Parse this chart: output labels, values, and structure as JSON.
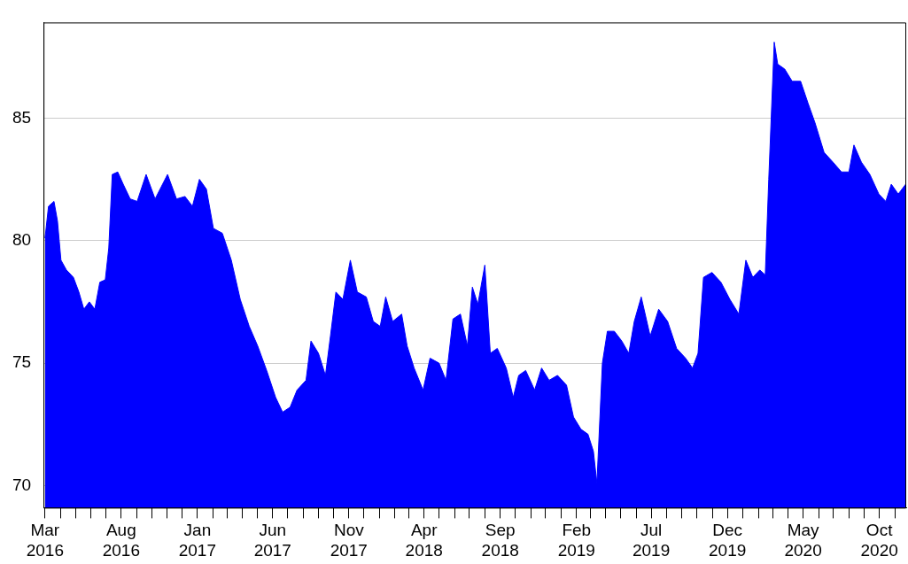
{
  "chart_data": {
    "type": "area",
    "x": [
      "2016-03-01",
      "2016-03-08",
      "2016-03-19",
      "2016-03-26",
      "2016-04-02",
      "2016-04-13",
      "2016-04-27",
      "2016-05-08",
      "2016-05-18",
      "2016-05-29",
      "2016-06-09",
      "2016-06-19",
      "2016-06-30",
      "2016-07-07",
      "2016-07-14",
      "2016-07-25",
      "2016-08-05",
      "2016-08-19",
      "2016-09-02",
      "2016-09-20",
      "2016-10-08",
      "2016-11-02",
      "2016-11-20",
      "2016-12-07",
      "2016-12-22",
      "2017-01-05",
      "2017-01-19",
      "2017-02-02",
      "2017-02-20",
      "2017-03-10",
      "2017-03-28",
      "2017-04-15",
      "2017-05-02",
      "2017-05-20",
      "2017-06-07",
      "2017-06-21",
      "2017-07-06",
      "2017-07-20",
      "2017-08-07",
      "2017-08-17",
      "2017-09-01",
      "2017-09-15",
      "2017-09-25",
      "2017-10-06",
      "2017-10-20",
      "2017-11-04",
      "2017-11-18",
      "2017-12-06",
      "2017-12-20",
      "2018-01-03",
      "2018-01-14",
      "2018-01-28",
      "2018-02-15",
      "2018-02-26",
      "2018-03-12",
      "2018-03-30",
      "2018-04-13",
      "2018-05-01",
      "2018-05-15",
      "2018-05-29",
      "2018-06-13",
      "2018-06-27",
      "2018-07-07",
      "2018-07-18",
      "2018-08-01",
      "2018-08-12",
      "2018-08-26",
      "2018-09-13",
      "2018-09-27",
      "2018-10-08",
      "2018-10-22",
      "2018-11-09",
      "2018-11-23",
      "2018-12-08",
      "2018-12-25",
      "2019-01-12",
      "2019-01-26",
      "2019-02-10",
      "2019-02-24",
      "2019-03-07",
      "2019-03-14",
      "2019-03-25",
      "2019-04-04",
      "2019-04-18",
      "2019-05-03",
      "2019-05-17",
      "2019-05-28",
      "2019-06-11",
      "2019-06-29",
      "2019-07-16",
      "2019-08-03",
      "2019-08-21",
      "2019-09-08",
      "2019-09-22",
      "2019-10-03",
      "2019-10-14",
      "2019-10-31",
      "2019-11-18",
      "2019-12-06",
      "2019-12-24",
      "2020-01-07",
      "2020-01-21",
      "2020-02-04",
      "2020-02-15",
      "2020-02-22",
      "2020-03-04",
      "2020-03-11",
      "2020-03-25",
      "2020-04-09",
      "2020-04-26",
      "2020-05-11",
      "2020-05-25",
      "2020-06-12",
      "2020-06-30",
      "2020-07-17",
      "2020-08-01",
      "2020-08-11",
      "2020-08-26",
      "2020-09-12",
      "2020-09-30",
      "2020-10-14",
      "2020-10-25",
      "2020-11-08",
      "2020-11-23"
    ],
    "series": [
      {
        "color": "#0000ff",
        "values": [
          80.1,
          81.4,
          81.6,
          80.8,
          79.2,
          78.8,
          78.5,
          77.9,
          77.2,
          77.5,
          77.2,
          78.3,
          78.4,
          79.7,
          82.7,
          82.8,
          82.3,
          81.7,
          81.6,
          82.7,
          81.7,
          82.7,
          81.7,
          81.8,
          81.4,
          82.5,
          82.1,
          80.5,
          80.3,
          79.2,
          77.6,
          76.5,
          75.7,
          74.7,
          73.6,
          73.0,
          73.2,
          73.9,
          74.3,
          75.9,
          75.4,
          74.5,
          76.1,
          77.9,
          77.6,
          79.2,
          77.9,
          77.7,
          76.7,
          76.5,
          77.7,
          76.7,
          77.0,
          75.7,
          74.8,
          73.9,
          75.2,
          75.0,
          74.3,
          76.8,
          77.0,
          75.7,
          78.1,
          77.4,
          79.0,
          75.4,
          75.6,
          74.8,
          73.6,
          74.5,
          74.7,
          73.9,
          74.8,
          74.3,
          74.5,
          74.1,
          72.8,
          72.3,
          72.1,
          71.4,
          70.1,
          75.0,
          76.3,
          76.3,
          75.9,
          75.4,
          76.7,
          77.7,
          76.1,
          77.2,
          76.7,
          75.6,
          75.2,
          74.8,
          75.4,
          78.5,
          78.7,
          78.3,
          77.6,
          77.0,
          79.2,
          78.5,
          78.8,
          78.6,
          82.5,
          88.1,
          87.2,
          87.0,
          86.5,
          86.5,
          85.6,
          84.8,
          83.6,
          83.2,
          82.8,
          82.8,
          83.9,
          83.2,
          82.7,
          81.9,
          81.6,
          82.3,
          81.9,
          82.3
        ]
      }
    ],
    "xlim": [
      "2016-02-27",
      "2020-11-24"
    ],
    "xticks": [
      {
        "value": "2016-03-01",
        "label": "Mar 2016"
      },
      {
        "value": "2016-04-01",
        "label": null
      },
      {
        "value": "2016-05-01",
        "label": null
      },
      {
        "value": "2016-06-01",
        "label": null
      },
      {
        "value": "2016-07-01",
        "label": null
      },
      {
        "value": "2016-08-01",
        "label": "Aug 2016"
      },
      {
        "value": "2016-09-01",
        "label": null
      },
      {
        "value": "2016-10-01",
        "label": null
      },
      {
        "value": "2016-11-01",
        "label": null
      },
      {
        "value": "2016-12-01",
        "label": null
      },
      {
        "value": "2017-01-01",
        "label": "Jan 2017"
      },
      {
        "value": "2017-02-01",
        "label": null
      },
      {
        "value": "2017-03-01",
        "label": null
      },
      {
        "value": "2017-04-01",
        "label": null
      },
      {
        "value": "2017-05-01",
        "label": null
      },
      {
        "value": "2017-06-01",
        "label": "Jun 2017"
      },
      {
        "value": "2017-07-01",
        "label": null
      },
      {
        "value": "2017-08-01",
        "label": null
      },
      {
        "value": "2017-09-01",
        "label": null
      },
      {
        "value": "2017-10-01",
        "label": null
      },
      {
        "value": "2017-11-01",
        "label": "Nov 2017"
      },
      {
        "value": "2017-12-01",
        "label": null
      },
      {
        "value": "2018-01-01",
        "label": null
      },
      {
        "value": "2018-02-01",
        "label": null
      },
      {
        "value": "2018-03-01",
        "label": null
      },
      {
        "value": "2018-04-01",
        "label": "Apr 2018"
      },
      {
        "value": "2018-05-01",
        "label": null
      },
      {
        "value": "2018-06-01",
        "label": null
      },
      {
        "value": "2018-07-01",
        "label": null
      },
      {
        "value": "2018-08-01",
        "label": null
      },
      {
        "value": "2018-09-01",
        "label": "Sep 2018"
      },
      {
        "value": "2018-10-01",
        "label": null
      },
      {
        "value": "2018-11-01",
        "label": null
      },
      {
        "value": "2018-12-01",
        "label": null
      },
      {
        "value": "2019-01-01",
        "label": null
      },
      {
        "value": "2019-02-01",
        "label": "Feb 2019"
      },
      {
        "value": "2019-03-01",
        "label": null
      },
      {
        "value": "2019-04-01",
        "label": null
      },
      {
        "value": "2019-05-01",
        "label": null
      },
      {
        "value": "2019-06-01",
        "label": null
      },
      {
        "value": "2019-07-01",
        "label": "Jul 2019"
      },
      {
        "value": "2019-08-01",
        "label": null
      },
      {
        "value": "2019-09-01",
        "label": null
      },
      {
        "value": "2019-10-01",
        "label": null
      },
      {
        "value": "2019-11-01",
        "label": null
      },
      {
        "value": "2019-12-01",
        "label": "Dec 2019"
      },
      {
        "value": "2020-01-01",
        "label": null
      },
      {
        "value": "2020-02-01",
        "label": null
      },
      {
        "value": "2020-03-01",
        "label": null
      },
      {
        "value": "2020-04-01",
        "label": null
      },
      {
        "value": "2020-05-01",
        "label": "May 2020"
      },
      {
        "value": "2020-06-01",
        "label": null
      },
      {
        "value": "2020-07-01",
        "label": null
      },
      {
        "value": "2020-08-01",
        "label": null
      },
      {
        "value": "2020-09-01",
        "label": null
      },
      {
        "value": "2020-10-01",
        "label": "Oct 2020"
      },
      {
        "value": "2020-11-01",
        "label": null
      }
    ],
    "ylim": [
      69.1,
      88.9
    ],
    "yticks": [
      70,
      75,
      80,
      85
    ],
    "grid": "y",
    "legend": false
  }
}
